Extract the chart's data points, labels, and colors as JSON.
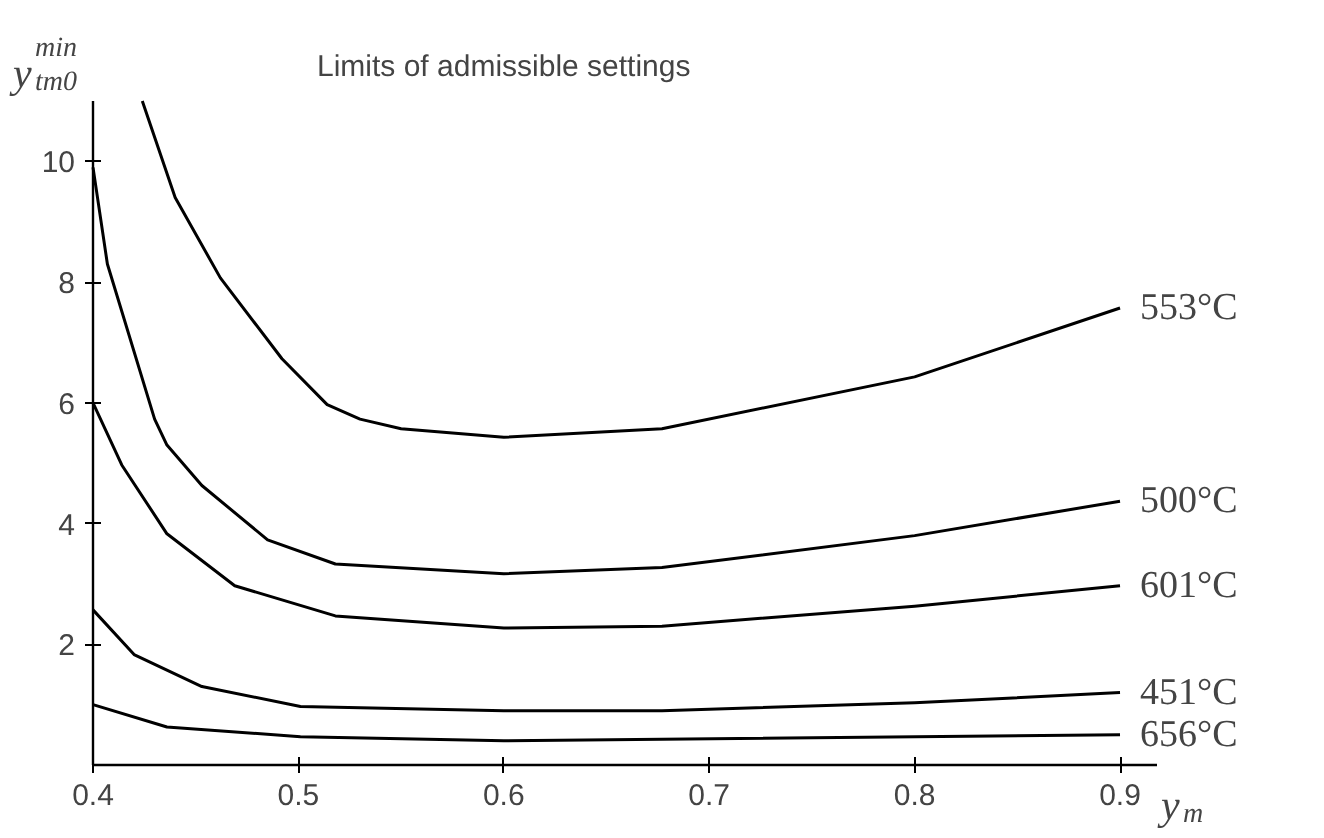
{
  "chart_data": {
    "type": "line",
    "title": "Limits of admissible settings",
    "xlabel": "y$_{m}$",
    "ylabel": "y$^{min}$$_{tm0}$",
    "xlim": [
      0.4,
      0.918
    ],
    "ylim": [
      0,
      11
    ],
    "xticks": [
      0.4,
      0.5,
      0.6,
      0.7,
      0.8,
      0.9
    ],
    "yticks": [
      2,
      4,
      6,
      8,
      10
    ],
    "grid": false,
    "marker": "none",
    "line_style": "solid",
    "series": [
      {
        "name": "553°C",
        "color": "#000000",
        "x": [
          0.424,
          0.44,
          0.462,
          0.492,
          0.514,
          0.53,
          0.55,
          0.6,
          0.677,
          0.8,
          0.9
        ],
        "values": [
          11.0,
          9.4,
          8.07,
          6.73,
          5.97,
          5.73,
          5.57,
          5.43,
          5.57,
          6.43,
          7.57
        ]
      },
      {
        "name": "500°C",
        "color": "#000000",
        "x": [
          0.4,
          0.407,
          0.43,
          0.436,
          0.453,
          0.485,
          0.518,
          0.6,
          0.677,
          0.8,
          0.9
        ],
        "values": [
          9.9,
          8.3,
          5.73,
          5.3,
          4.63,
          3.73,
          3.33,
          3.17,
          3.27,
          3.8,
          4.37
        ]
      },
      {
        "name": "601°C",
        "color": "#000000",
        "x": [
          0.4,
          0.414,
          0.436,
          0.469,
          0.518,
          0.6,
          0.677,
          0.8,
          0.9
        ],
        "values": [
          6.0,
          4.97,
          3.83,
          2.97,
          2.47,
          2.27,
          2.3,
          2.63,
          2.97
        ]
      },
      {
        "name": "451°C",
        "color": "#000000",
        "x": [
          0.4,
          0.42,
          0.453,
          0.501,
          0.6,
          0.677,
          0.8,
          0.9
        ],
        "values": [
          2.57,
          1.83,
          1.3,
          0.97,
          0.9,
          0.9,
          1.03,
          1.2
        ]
      },
      {
        "name": "656°C",
        "color": "#000000",
        "x": [
          0.4,
          0.436,
          0.501,
          0.6,
          0.9
        ],
        "values": [
          1.0,
          0.63,
          0.47,
          0.4,
          0.5
        ]
      }
    ]
  }
}
